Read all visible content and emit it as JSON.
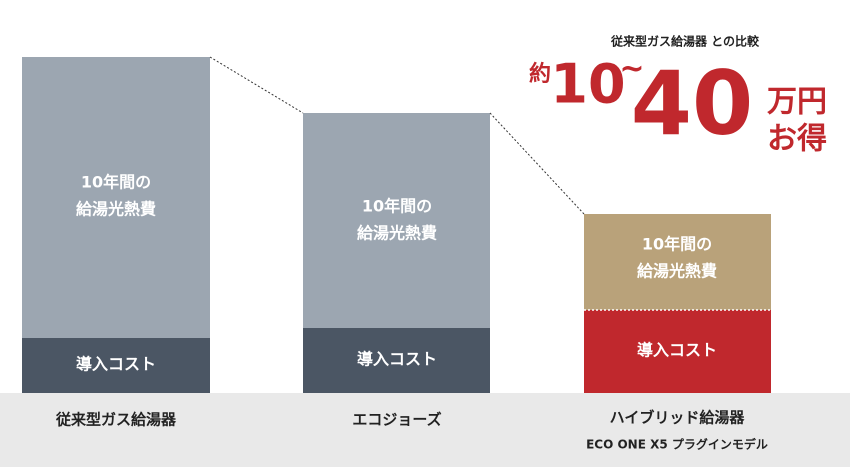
{
  "headline": {
    "comparison": "従来型ガス給湯器 との比較",
    "prefix": "約",
    "from": "10",
    "tilde": "~",
    "to": "40",
    "unit": "万円",
    "suffix": "お得"
  },
  "bars": [
    {
      "label": "従来型ガス給湯器",
      "upper": [
        "10年間の",
        "給湯光熱費"
      ],
      "lower": "導入コスト"
    },
    {
      "label": "エコジョーズ",
      "upper": [
        "10年間の",
        "給湯光熱費"
      ],
      "lower": "導入コスト"
    },
    {
      "label": "ハイブリッド給湯器",
      "sublabel": "ECO ONE X5 プラグインモデル",
      "upper": [
        "10年間の",
        "給湯光熱費"
      ],
      "lower": "導入コスト"
    }
  ]
}
